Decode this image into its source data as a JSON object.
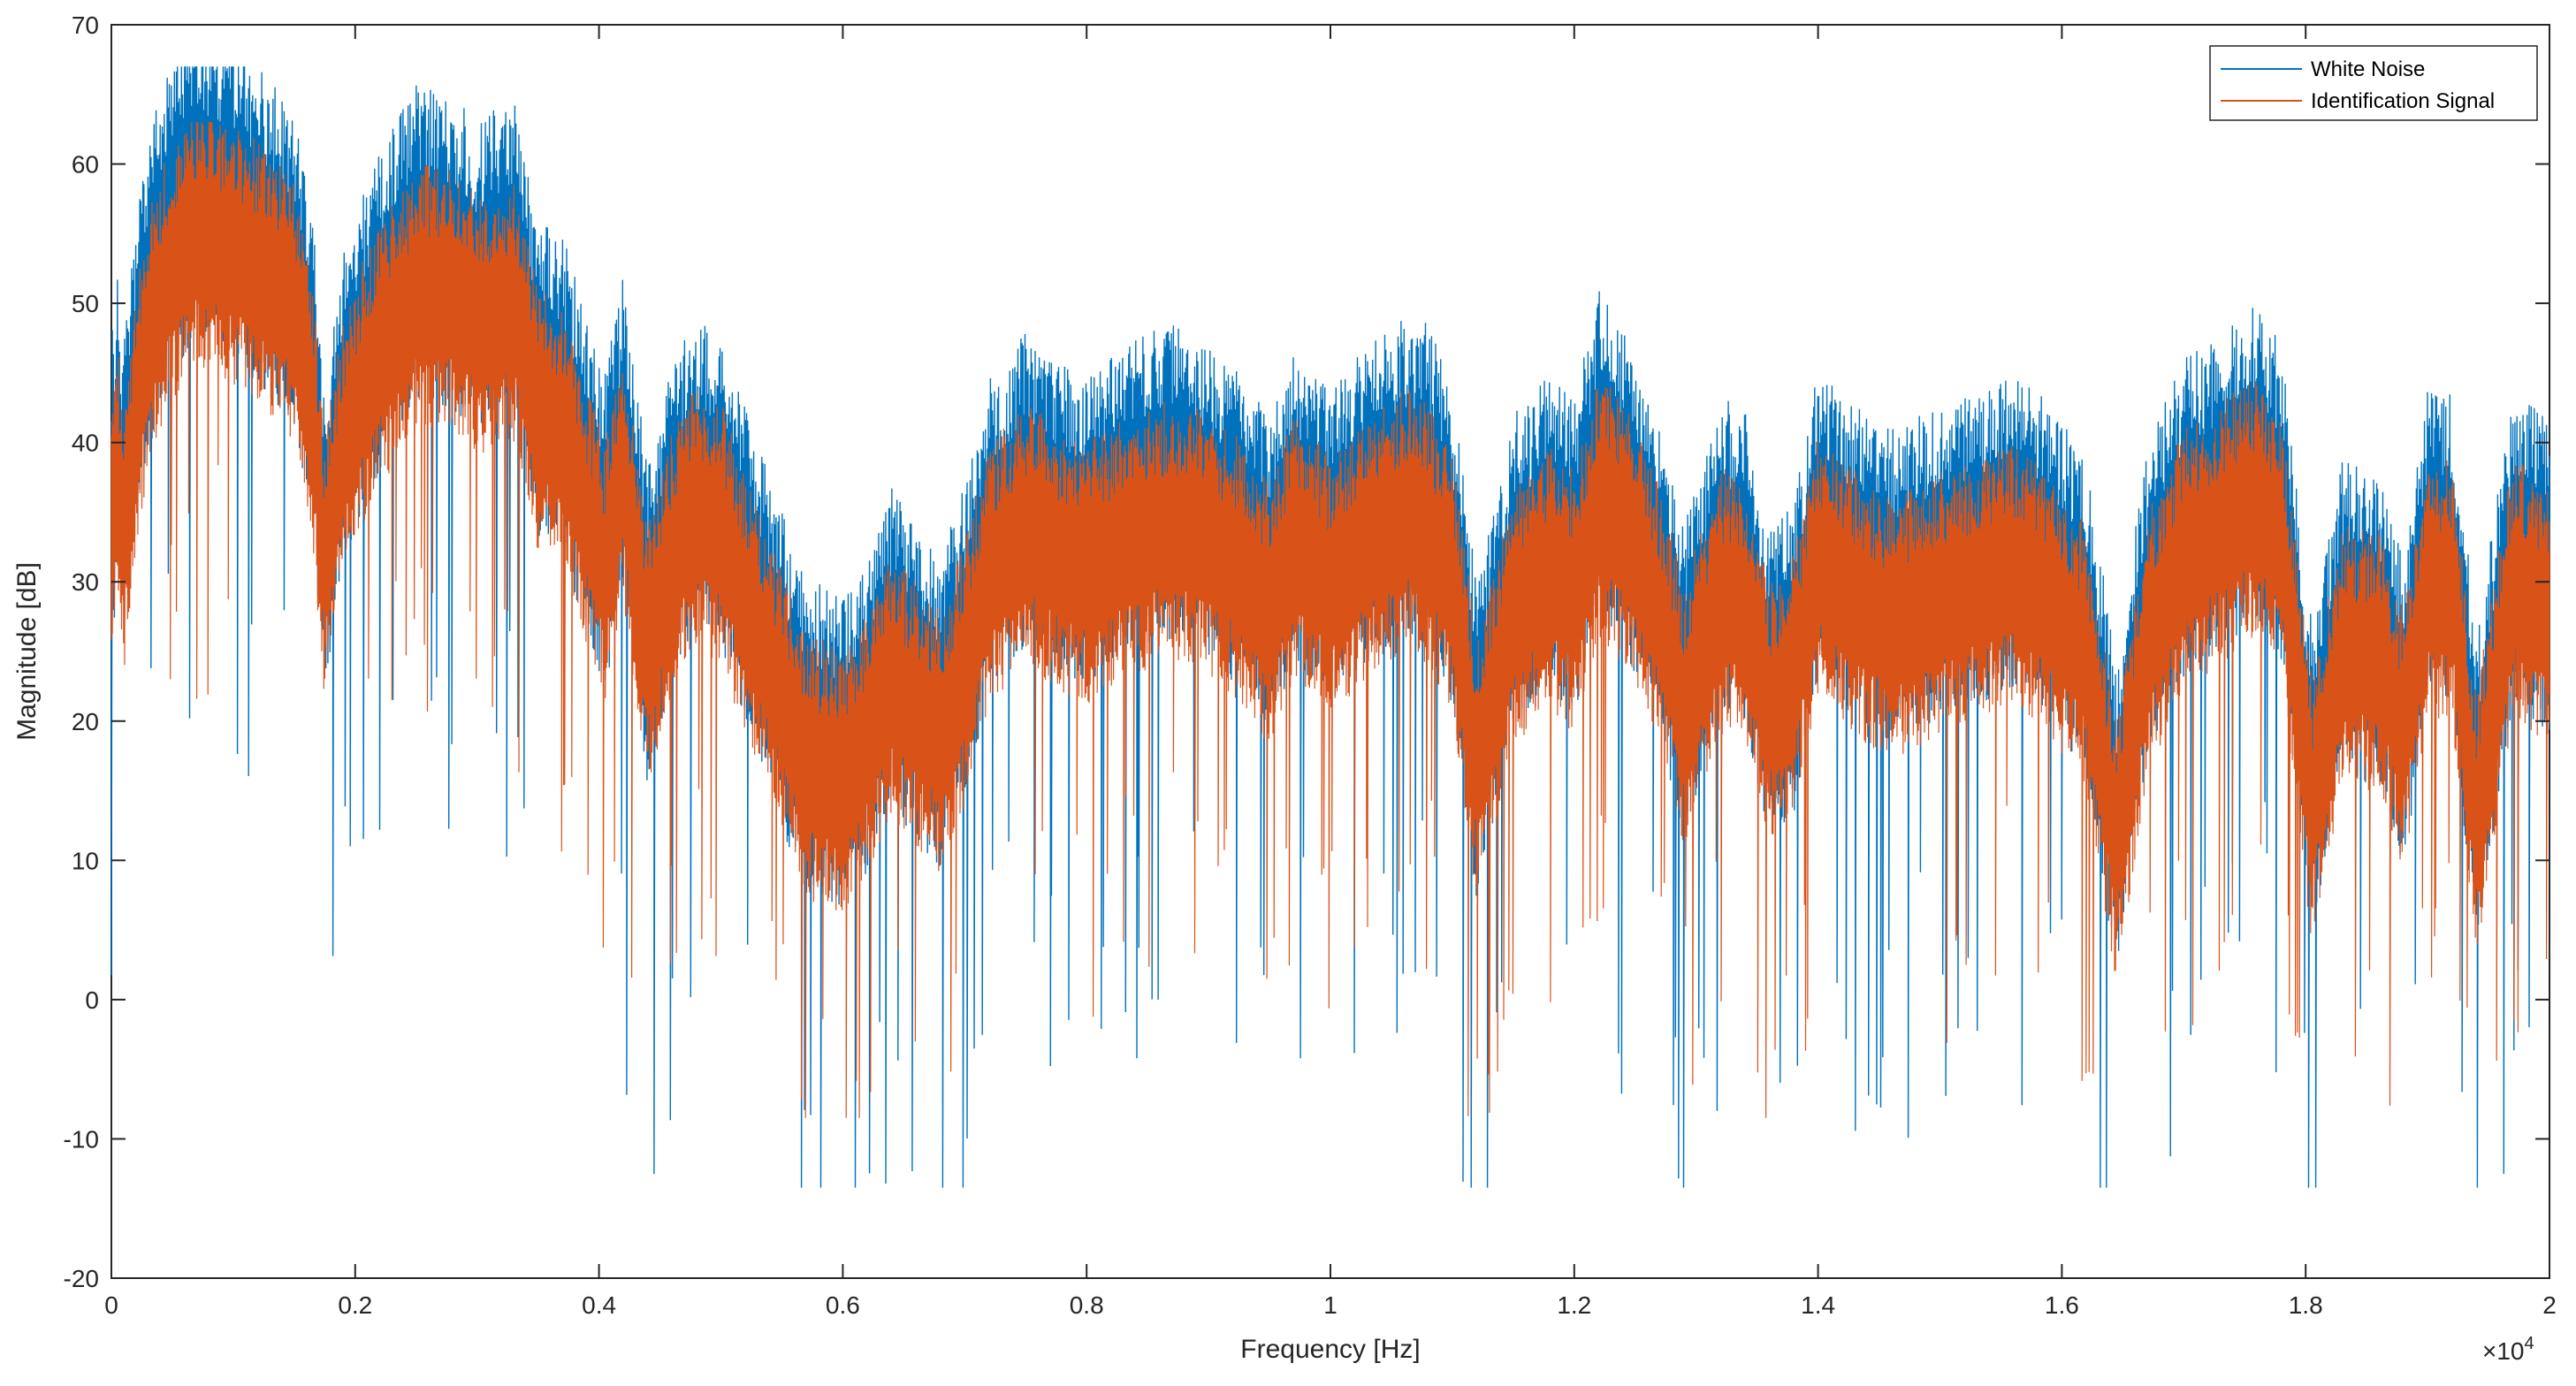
{
  "chart_data": {
    "type": "line",
    "title": "",
    "xlabel": "Frequency [Hz]",
    "ylabel": "Magnitude [dB]",
    "x_exponent_label": "×10",
    "x_exponent_power": "4",
    "xlim": [
      0,
      2
    ],
    "ylim": [
      -20,
      70
    ],
    "x_ticks": [
      0,
      0.2,
      0.4,
      0.6,
      0.8,
      1,
      1.2,
      1.4,
      1.6,
      1.8,
      2
    ],
    "x_tick_labels": [
      "0",
      "0.2",
      "0.4",
      "0.6",
      "0.8",
      "1",
      "1.2",
      "1.4",
      "1.6",
      "1.8",
      "2"
    ],
    "y_ticks": [
      -20,
      -10,
      0,
      10,
      20,
      30,
      40,
      50,
      60,
      70
    ],
    "y_tick_labels": [
      "-20",
      "-10",
      "0",
      "10",
      "20",
      "30",
      "40",
      "50",
      "60",
      "70"
    ],
    "grid": false,
    "legend_position": "top-right",
    "series": [
      {
        "name": "White Noise",
        "color": "#0072BD",
        "envelope_x": [
          0,
          0.005,
          0.01,
          0.02,
          0.03,
          0.05,
          0.07,
          0.1,
          0.13,
          0.15,
          0.165,
          0.175,
          0.19,
          0.21,
          0.25,
          0.28,
          0.3,
          0.33,
          0.35,
          0.37,
          0.39,
          0.405,
          0.42,
          0.44,
          0.46,
          0.48,
          0.5,
          0.52,
          0.55,
          0.57,
          0.585,
          0.6,
          0.62,
          0.64,
          0.66,
          0.68,
          0.7,
          0.72,
          0.75,
          0.78,
          0.8,
          0.83,
          0.86,
          0.88,
          0.9,
          0.93,
          0.95,
          0.97,
          1.0,
          1.03,
          1.06,
          1.08,
          1.1,
          1.12,
          1.15,
          1.18,
          1.2,
          1.22,
          1.24,
          1.27,
          1.29,
          1.32,
          1.34,
          1.36,
          1.38,
          1.4,
          1.43,
          1.46,
          1.5,
          1.53,
          1.56,
          1.59,
          1.62,
          1.645,
          1.67,
          1.7,
          1.73,
          1.76,
          1.78,
          1.805,
          1.83,
          1.86,
          1.88,
          1.9,
          1.92,
          1.94,
          1.97,
          2.0
        ],
        "envelope_y": [
          36,
          40,
          35,
          44,
          50,
          56,
          58,
          57,
          54,
          52,
          45,
          32,
          42,
          47,
          54,
          53,
          51,
          53,
          44,
          43,
          37,
          33,
          40,
          26,
          34,
          37,
          36,
          31,
          23,
          18,
          18,
          17,
          20,
          25,
          22,
          20,
          25,
          33,
          36,
          34,
          33,
          35,
          37,
          36,
          35,
          33,
          30,
          35,
          32,
          35,
          37,
          37,
          32,
          18,
          30,
          33,
          31,
          39,
          36,
          30,
          22,
          31,
          31,
          22,
          24,
          34,
          31,
          29,
          31,
          32,
          33,
          31,
          27,
          12,
          28,
          34,
          36,
          38,
          35,
          15,
          27,
          26,
          20,
          32,
          32,
          14,
          32,
          30
        ],
        "spread": [
          12,
          25
        ],
        "min_y": -13.5,
        "max_y": 67
      },
      {
        "name": "Identification Signal",
        "color": "#D95319",
        "envelope_x": [
          0,
          0.005,
          0.01,
          0.02,
          0.03,
          0.05,
          0.07,
          0.1,
          0.13,
          0.15,
          0.165,
          0.175,
          0.19,
          0.21,
          0.25,
          0.28,
          0.3,
          0.33,
          0.35,
          0.37,
          0.39,
          0.405,
          0.42,
          0.44,
          0.46,
          0.48,
          0.5,
          0.52,
          0.55,
          0.57,
          0.585,
          0.6,
          0.62,
          0.64,
          0.66,
          0.68,
          0.7,
          0.72,
          0.75,
          0.78,
          0.8,
          0.83,
          0.86,
          0.88,
          0.9,
          0.93,
          0.95,
          0.97,
          1.0,
          1.03,
          1.06,
          1.08,
          1.1,
          1.12,
          1.15,
          1.18,
          1.2,
          1.22,
          1.24,
          1.27,
          1.29,
          1.32,
          1.34,
          1.36,
          1.38,
          1.4,
          1.43,
          1.46,
          1.5,
          1.53,
          1.56,
          1.59,
          1.62,
          1.645,
          1.67,
          1.7,
          1.73,
          1.76,
          1.78,
          1.805,
          1.83,
          1.86,
          1.88,
          1.9,
          1.92,
          1.94,
          1.97,
          2.0
        ],
        "envelope_y": [
          33,
          37,
          32,
          41,
          47,
          52,
          54,
          53,
          51,
          49,
          42,
          30,
          39,
          44,
          50,
          50,
          48,
          49,
          41,
          40,
          34,
          30,
          37,
          24,
          31,
          34,
          33,
          28,
          21,
          16,
          16,
          15,
          18,
          22,
          20,
          18,
          23,
          30,
          33,
          31,
          30,
          32,
          33,
          33,
          32,
          30,
          27,
          32,
          29,
          32,
          34,
          33,
          29,
          16,
          27,
          30,
          28,
          35,
          33,
          27,
          20,
          28,
          28,
          20,
          22,
          31,
          28,
          26,
          28,
          29,
          30,
          28,
          24,
          10,
          25,
          31,
          33,
          35,
          32,
          13,
          24,
          24,
          18,
          29,
          29,
          12,
          29,
          27
        ],
        "spread": [
          10,
          18
        ],
        "min_y": -8.5,
        "max_y": 63
      }
    ]
  }
}
